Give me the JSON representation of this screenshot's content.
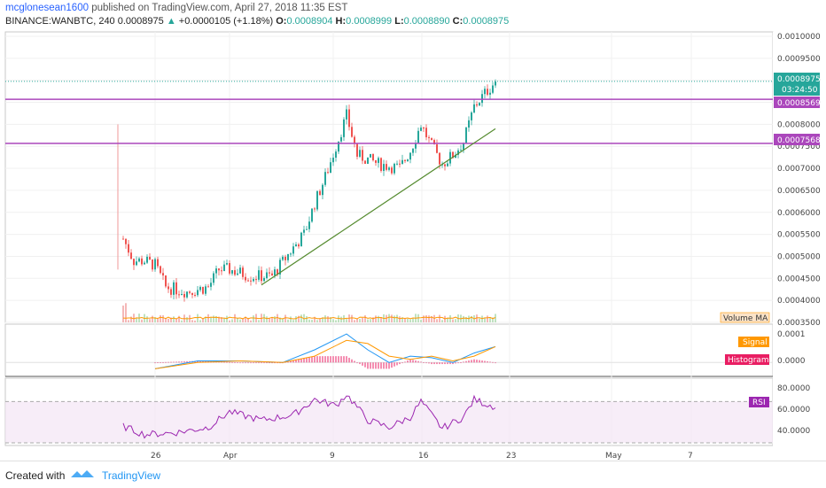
{
  "header": {
    "user": "mcglonesean1600",
    "published": " published on TradingView.com, April 27, 2018 11:35 EST",
    "symbol": "BINANCE:WANBTC, 240",
    "last": "0.0008975",
    "arrow": "▲",
    "change": "+0.0000105 (+1.18%)",
    "o_label": "O:",
    "o": "0.0008904",
    "h_label": "H:",
    "h": "0.0008999",
    "l_label": "L:",
    "l": "0.0008890",
    "c_label": "C:",
    "c": "0.0008975"
  },
  "colors": {
    "up": "#26a69a",
    "down": "#ef5350",
    "purple_line": "#ab47bc",
    "trend": "#558b2f",
    "macd": "#2196f3",
    "signal": "#ff9800",
    "hist": "#e91e63",
    "rsi": "#9c27b0"
  },
  "price_axis": {
    "ticks": [
      "0.0010000",
      "0.0009500",
      "0.0009000",
      "0.0008500",
      "0.0008000",
      "0.0007500",
      "0.0007000",
      "0.0006500",
      "0.0006000",
      "0.0005500",
      "0.0005000",
      "0.0004500",
      "0.0004000",
      "0.0003500"
    ]
  },
  "badges": {
    "last": "0.0008975",
    "timer": "03:24:50",
    "level1": "0.0008569",
    "level2": "0.0007568"
  },
  "panes": {
    "volume_label": "Volume MA",
    "signal_label": "Signal",
    "histogram_label": "Histogram",
    "macd_ticks": [
      "0.0001",
      "0.0000"
    ],
    "rsi_label": "RSI",
    "rsi_ticks": [
      "80.0000",
      "60.0000",
      "40.0000"
    ]
  },
  "x_axis": {
    "labels": [
      "26",
      "Apr",
      "9",
      "16",
      "23",
      "May",
      "7"
    ]
  },
  "footer": {
    "created": "Created with",
    "brand": "TradingView"
  },
  "chart_data": {
    "type": "candlestick",
    "symbol": "BINANCE:WANBTC",
    "interval": "240",
    "ylim": [
      0.00035,
      0.00101
    ],
    "horizontal_levels": [
      0.0008569,
      0.0007568
    ],
    "trendline": {
      "from": {
        "date": "2018-04-05",
        "price": 0.000435
      },
      "to": {
        "date": "2018-04-27",
        "price": 0.00079
      }
    },
    "price_path": [
      {
        "date": "2018-03-23",
        "price": 0.00054
      },
      {
        "date": "2018-03-24",
        "price": 0.00049
      },
      {
        "date": "2018-03-25",
        "price": 0.00049
      },
      {
        "date": "2018-03-26",
        "price": 0.00048
      },
      {
        "date": "2018-03-27",
        "price": 0.00043
      },
      {
        "date": "2018-03-29",
        "price": 0.00042
      },
      {
        "date": "2018-03-31",
        "price": 0.00043
      },
      {
        "date": "2018-04-01",
        "price": 0.00047
      },
      {
        "date": "2018-04-02",
        "price": 0.00047
      },
      {
        "date": "2018-04-04",
        "price": 0.000455
      },
      {
        "date": "2018-04-06",
        "price": 0.000455
      },
      {
        "date": "2018-04-08",
        "price": 0.00052
      },
      {
        "date": "2018-04-09",
        "price": 0.00055
      },
      {
        "date": "2018-04-10",
        "price": 0.00062
      },
      {
        "date": "2018-04-11",
        "price": 0.00068
      },
      {
        "date": "2018-04-12",
        "price": 0.00075
      },
      {
        "date": "2018-04-13",
        "price": 0.00082
      },
      {
        "date": "2018-04-14",
        "price": 0.00073
      },
      {
        "date": "2018-04-16",
        "price": 0.00071
      },
      {
        "date": "2018-04-18",
        "price": 0.0007
      },
      {
        "date": "2018-04-19",
        "price": 0.00074
      },
      {
        "date": "2018-04-20",
        "price": 0.0008
      },
      {
        "date": "2018-04-21",
        "price": 0.00075
      },
      {
        "date": "2018-04-22",
        "price": 0.00071
      },
      {
        "date": "2018-04-23",
        "price": 0.00073
      },
      {
        "date": "2018-04-24",
        "price": 0.00076
      },
      {
        "date": "2018-04-25",
        "price": 0.00084
      },
      {
        "date": "2018-04-26",
        "price": 0.00087
      },
      {
        "date": "2018-04-27",
        "price": 0.0008975
      }
    ],
    "rsi_range": [
      30,
      90
    ],
    "rsi_levels": [
      70,
      30
    ],
    "rsi_path": [
      {
        "date": "2018-03-23",
        "rsi": 46
      },
      {
        "date": "2018-03-25",
        "rsi": 38
      },
      {
        "date": "2018-03-28",
        "rsi": 40
      },
      {
        "date": "2018-03-31",
        "rsi": 45
      },
      {
        "date": "2018-04-02",
        "rsi": 60
      },
      {
        "date": "2018-04-05",
        "rsi": 52
      },
      {
        "date": "2018-04-08",
        "rsi": 57
      },
      {
        "date": "2018-04-10",
        "rsi": 72
      },
      {
        "date": "2018-04-12",
        "rsi": 66
      },
      {
        "date": "2018-04-13",
        "rsi": 77
      },
      {
        "date": "2018-04-15",
        "rsi": 52
      },
      {
        "date": "2018-04-17",
        "rsi": 45
      },
      {
        "date": "2018-04-19",
        "rsi": 55
      },
      {
        "date": "2018-04-20",
        "rsi": 70
      },
      {
        "date": "2018-04-22",
        "rsi": 44
      },
      {
        "date": "2018-04-24",
        "rsi": 55
      },
      {
        "date": "2018-04-25",
        "rsi": 72
      },
      {
        "date": "2018-04-26",
        "rsi": 68
      },
      {
        "date": "2018-04-27",
        "rsi": 65
      }
    ],
    "macd_range": [
      -3e-05,
      0.00011
    ],
    "macd_path": [
      {
        "date": "2018-03-26",
        "macd": -2e-05,
        "signal": -2e-05
      },
      {
        "date": "2018-03-30",
        "macd": 5e-06,
        "signal": 0.0
      },
      {
        "date": "2018-04-03",
        "macd": 5e-06,
        "signal": 5e-06
      },
      {
        "date": "2018-04-07",
        "macd": 0.0,
        "signal": 0.0
      },
      {
        "date": "2018-04-10",
        "macd": 4e-05,
        "signal": 2e-05
      },
      {
        "date": "2018-04-13",
        "macd": 9e-05,
        "signal": 7e-05
      },
      {
        "date": "2018-04-15",
        "macd": 4e-05,
        "signal": 6e-05
      },
      {
        "date": "2018-04-17",
        "macd": 0.0,
        "signal": 2e-05
      },
      {
        "date": "2018-04-19",
        "macd": 2e-05,
        "signal": 1e-05
      },
      {
        "date": "2018-04-21",
        "macd": 1.5e-05,
        "signal": 2e-05
      },
      {
        "date": "2018-04-23",
        "macd": 0.0,
        "signal": 5e-06
      },
      {
        "date": "2018-04-25",
        "macd": 3e-05,
        "signal": 2e-05
      },
      {
        "date": "2018-04-27",
        "macd": 5e-05,
        "signal": 5e-05
      }
    ]
  }
}
